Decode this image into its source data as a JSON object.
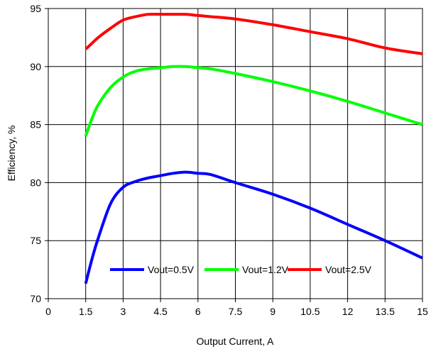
{
  "chart_data": {
    "type": "line",
    "title": "",
    "xlabel": "Output Current, A",
    "ylabel": "Efficiency, %",
    "xlim": [
      0,
      15
    ],
    "ylim": [
      70,
      95
    ],
    "x_ticks": [
      "0",
      "1.5",
      "3",
      "4.5",
      "6",
      "7.5",
      "9",
      "10.5",
      "12",
      "13.5",
      "15"
    ],
    "y_ticks": [
      "70",
      "75",
      "80",
      "85",
      "90",
      "95"
    ],
    "grid": true,
    "legend_position": "bottom-center (inside plot)",
    "series": [
      {
        "name": "Vout=0.5V",
        "color": "#0000ff",
        "x": [
          1.5,
          1.75,
          2,
          2.5,
          3,
          3.5,
          4,
          4.5,
          5,
          5.5,
          6,
          6.5,
          7.5,
          9,
          10.5,
          12,
          13.5,
          15
        ],
        "y": [
          71.3,
          73.4,
          75.2,
          78.2,
          79.6,
          80.1,
          80.4,
          80.6,
          80.8,
          80.9,
          80.8,
          80.7,
          80.0,
          79.0,
          77.8,
          76.4,
          75.0,
          73.5
        ]
      },
      {
        "name": "Vout=1.2V",
        "color": "#00ff00",
        "x": [
          1.5,
          1.75,
          2,
          2.5,
          3,
          3.5,
          4,
          4.5,
          5,
          5.5,
          6,
          6.5,
          7.5,
          9,
          10.5,
          12,
          13.5,
          15
        ],
        "y": [
          84.0,
          85.5,
          86.7,
          88.2,
          89.1,
          89.6,
          89.8,
          89.9,
          90.0,
          90.0,
          89.9,
          89.8,
          89.4,
          88.7,
          87.9,
          87.0,
          86.0,
          85.0
        ]
      },
      {
        "name": "Vout=2.5V",
        "color": "#ff0000",
        "x": [
          1.5,
          1.75,
          2,
          2.5,
          3,
          3.5,
          4,
          4.5,
          5,
          5.5,
          6,
          6.5,
          7.5,
          9,
          10.5,
          12,
          13.5,
          15
        ],
        "y": [
          91.5,
          92.0,
          92.5,
          93.3,
          94.0,
          94.3,
          94.5,
          94.5,
          94.5,
          94.5,
          94.4,
          94.3,
          94.1,
          93.6,
          93.0,
          92.4,
          91.6,
          91.1
        ]
      }
    ]
  }
}
